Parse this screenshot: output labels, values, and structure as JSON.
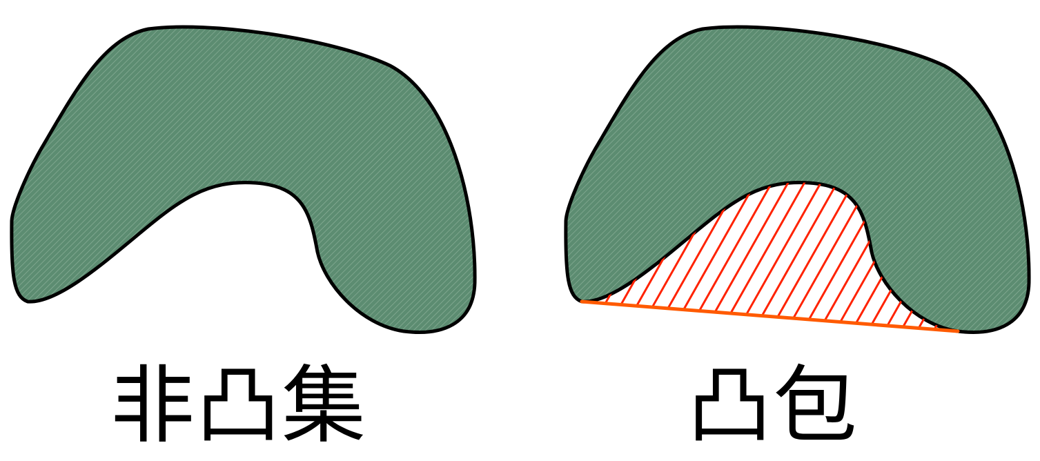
{
  "panels": [
    {
      "name": "non-convex-set",
      "caption": "非凸集",
      "show_hull": false
    },
    {
      "name": "convex-hull",
      "caption": "凸包",
      "show_hull": true
    }
  ],
  "colors": {
    "shape_fill": "#5c8c71",
    "shape_hatch": "#8fb39c",
    "shape_outline": "#000000",
    "hull_edge": "#ff5a00",
    "hull_hatch": "#ff2200",
    "background": "#ffffff"
  }
}
